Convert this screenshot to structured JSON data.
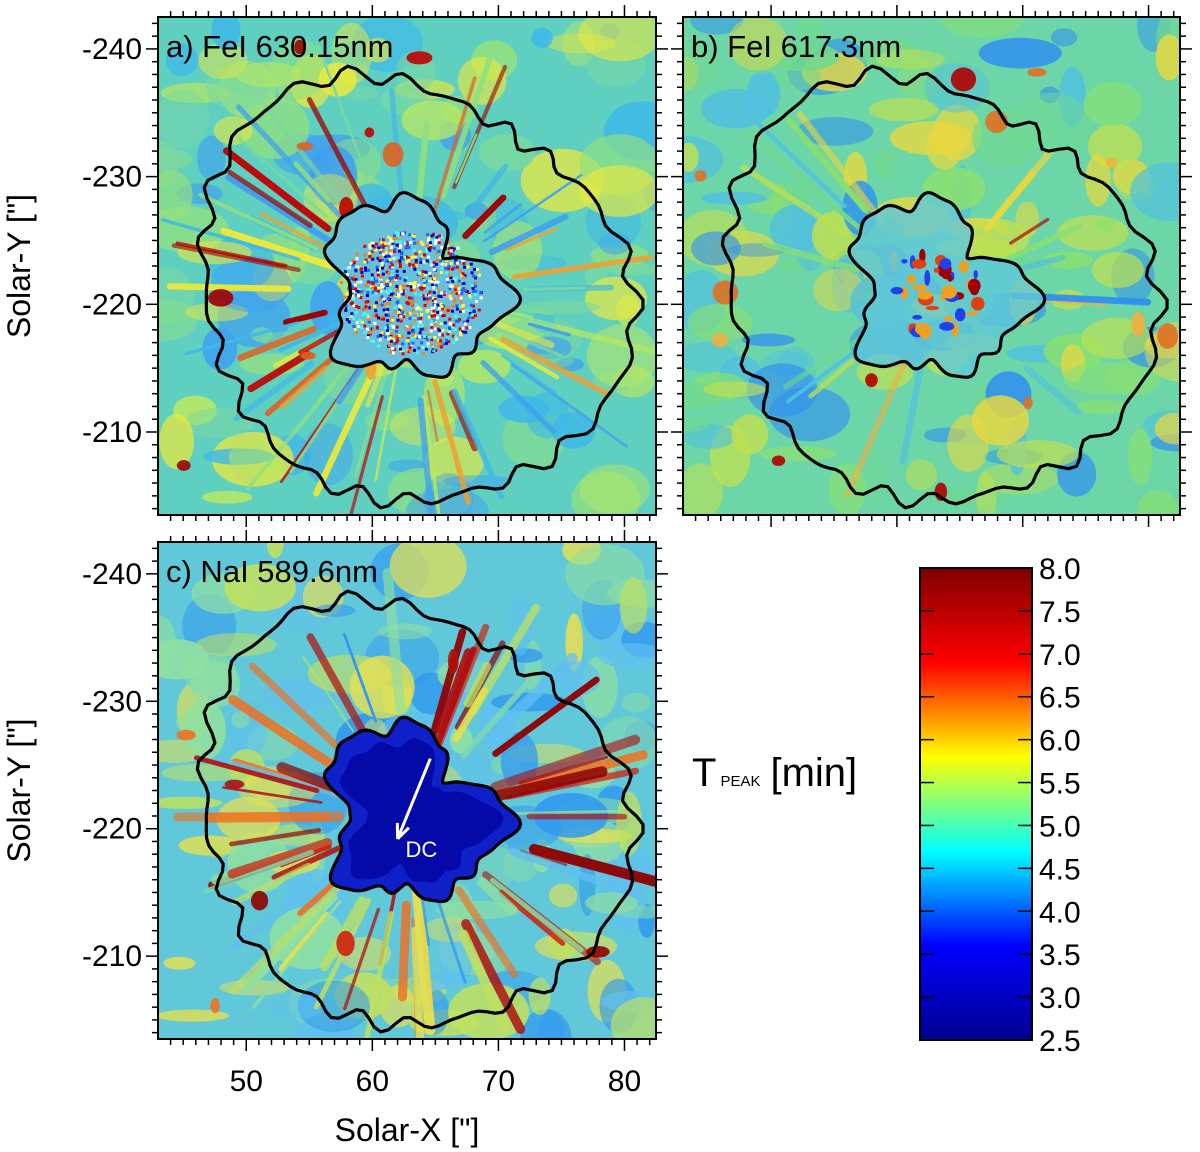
{
  "chart_data": {
    "type": "heatmap",
    "panels": [
      {
        "id": "a",
        "title": "a) FeI 630.15nm",
        "show_xticklabels": false,
        "show_yticklabels": true
      },
      {
        "id": "b",
        "title": "b) FeI 617.3nm",
        "show_xticklabels": false,
        "show_yticklabels": false
      },
      {
        "id": "c",
        "title": "c) NaI 589.6nm",
        "show_xticklabels": true,
        "show_yticklabels": true,
        "annotation": "DC"
      }
    ],
    "xlabel": "Solar-X [\"]",
    "ylabel": "Solar-Y [\"]",
    "xlim": [
      43,
      82.5
    ],
    "ylim": [
      -242.5,
      -203.5
    ],
    "x_ticks": [
      50,
      60,
      70,
      80
    ],
    "y_ticks": [
      -240,
      -230,
      -220,
      -210
    ],
    "colorbar": {
      "label_main": "T",
      "label_sub": "PEAK",
      "label_unit": "[min]",
      "range": [
        2.5,
        8.0
      ],
      "ticks": [
        "8.0",
        "7.5",
        "7.0",
        "6.5",
        "6.0",
        "5.5",
        "5.0",
        "4.5",
        "4.0",
        "3.5",
        "3.0",
        "2.5"
      ],
      "colormap": [
        "#00008f",
        "#0000ff",
        "#00ffff",
        "#ffff00",
        "#ff0000",
        "#800000"
      ]
    },
    "palette": {
      "background": "#5fd0c0",
      "inner_contour": "#000000",
      "outer_contour": "#000000",
      "arrow": "#ffffff"
    }
  }
}
